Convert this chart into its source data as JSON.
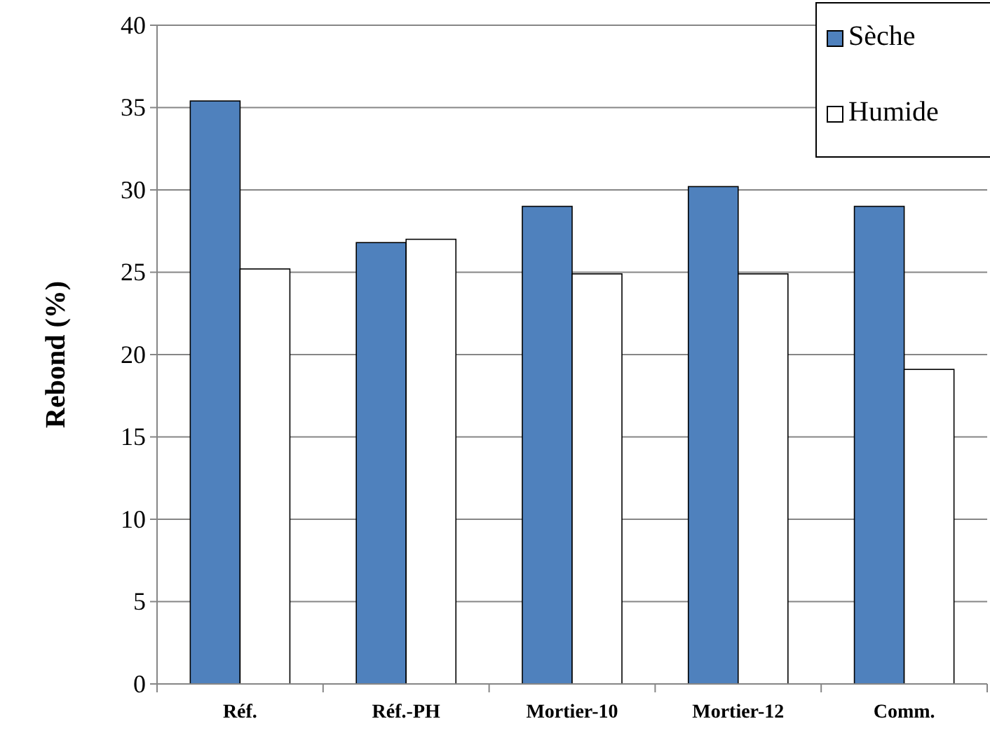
{
  "chart_data": {
    "type": "bar",
    "ylabel": "Rebond (%)",
    "categories": [
      "Réf.",
      "Réf.-PH",
      "Mortier-10",
      "Mortier-12",
      "Comm."
    ],
    "series": [
      {
        "name": "Sèche",
        "color": "#4f81bd",
        "values": [
          35.4,
          26.8,
          29.0,
          30.2,
          29.0
        ]
      },
      {
        "name": "Humide",
        "color": "#ffffff",
        "values": [
          25.2,
          27.0,
          24.9,
          24.9,
          19.1
        ]
      }
    ],
    "ylim": [
      0,
      40
    ],
    "yticks": [
      0,
      5,
      10,
      15,
      20,
      25,
      30,
      35,
      40
    ],
    "grid": "y",
    "legend": "top right"
  }
}
